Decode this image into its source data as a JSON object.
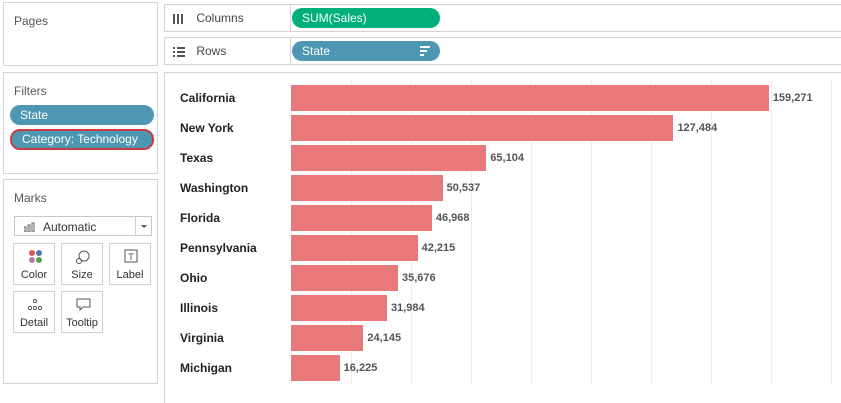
{
  "pages": {
    "title": "Pages"
  },
  "filters": {
    "title": "Filters",
    "pills": [
      {
        "label": "State",
        "color": "#4e97b2"
      },
      {
        "label": "Category: Technology",
        "color": "#4e97b2",
        "border": "#c83c45"
      }
    ]
  },
  "marks": {
    "title": "Marks",
    "type_label": "Automatic",
    "buttons": [
      {
        "label": "Color",
        "icon": "color-dots-icon"
      },
      {
        "label": "Size",
        "icon": "size-icon"
      },
      {
        "label": "Label",
        "icon": "text-label-icon"
      },
      {
        "label": "Detail",
        "icon": "detail-dots-icon"
      },
      {
        "label": "Tooltip",
        "icon": "tooltip-icon"
      }
    ]
  },
  "shelves": {
    "columns": {
      "label": "Columns",
      "icon": "columns-icon",
      "pill": "SUM(Sales)",
      "pill_color": "#03af7b"
    },
    "rows": {
      "label": "Rows",
      "icon": "rows-icon",
      "pill": "State",
      "pill_color": "#4e97b2",
      "pill_icon": "sort-descending-icon"
    }
  },
  "chart_data": {
    "type": "bar",
    "orientation": "horizontal",
    "categories": [
      "California",
      "New York",
      "Texas",
      "Washington",
      "Florida",
      "Pennsylvania",
      "Ohio",
      "Illinois",
      "Virginia",
      "Michigan"
    ],
    "values": [
      159271,
      127484,
      65104,
      50537,
      46968,
      42215,
      35676,
      31984,
      24145,
      16225
    ],
    "value_labels": [
      "159,271",
      "127,484",
      "65,104",
      "50,537",
      "46,968",
      "42,215",
      "35,676",
      "31,984",
      "24,145",
      "16,225"
    ],
    "bar_color": "#e8787a",
    "xlim": [
      0,
      180000
    ],
    "grid": true,
    "title": "",
    "xlabel": "",
    "ylabel": ""
  }
}
